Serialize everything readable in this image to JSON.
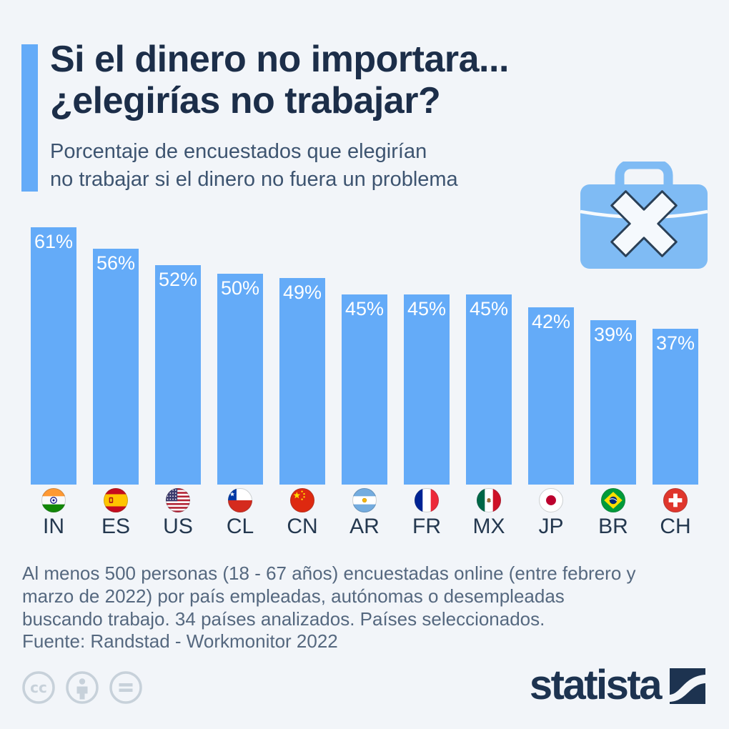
{
  "header": {
    "accent_color": "#64abf8",
    "title_line1": "Si el dinero no importara...",
    "title_line2": "¿elegirías no trabajar?",
    "subtitle_line1": "Porcentaje de encuestados que elegirían",
    "subtitle_line2": "no trabajar si el dinero no fuera un problema"
  },
  "chart_data": {
    "type": "bar",
    "title": "Si el dinero no importara... ¿elegirías no trabajar?",
    "categories": [
      "IN",
      "ES",
      "US",
      "CL",
      "CN",
      "AR",
      "FR",
      "MX",
      "JP",
      "BR",
      "CH"
    ],
    "values": [
      61,
      56,
      52,
      50,
      49,
      45,
      45,
      45,
      42,
      39,
      37
    ],
    "value_labels": [
      "61%",
      "56%",
      "52%",
      "50%",
      "49%",
      "45%",
      "45%",
      "45%",
      "42%",
      "39%",
      "37%"
    ],
    "flags": [
      "India",
      "Spain",
      "United States",
      "Chile",
      "China",
      "Argentina",
      "France",
      "Mexico",
      "Japan",
      "Brazil",
      "Switzerland"
    ],
    "ylim": [
      0,
      61
    ],
    "grid": false,
    "legend": false,
    "bar_color": "#64abf8",
    "value_label_color": "#ffffff"
  },
  "footnote": {
    "lines": [
      "Al menos 500 personas (18 - 67 años) encuestadas online (entre febrero y",
      "marzo de 2022) por país empleadas, autónomas o desempleadas",
      "buscando trabajo. 34 países analizados. Países seleccionados."
    ],
    "source": "Fuente: Randstad - Workmonitor 2022"
  },
  "branding": {
    "logo_text": "statista",
    "logo_color": "#1d3350",
    "license_icon_color": "#c7d1da"
  }
}
